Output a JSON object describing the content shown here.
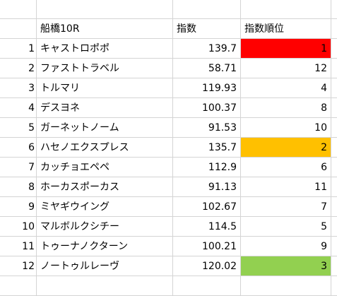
{
  "header": {
    "name": "船橋10R",
    "index": "指数",
    "rank": "指数順位"
  },
  "rows": [
    {
      "num": "1",
      "name": "キャストロポポ",
      "index": "139.7",
      "rank": "1",
      "highlight": "#ff0000"
    },
    {
      "num": "2",
      "name": "ファストトラベル",
      "index": "58.71",
      "rank": "12"
    },
    {
      "num": "3",
      "name": "トルマリ",
      "index": "119.93",
      "rank": "4"
    },
    {
      "num": "4",
      "name": "デスヨネ",
      "index": "100.37",
      "rank": "8"
    },
    {
      "num": "5",
      "name": "ガーネットノーム",
      "index": "91.53",
      "rank": "10"
    },
    {
      "num": "6",
      "name": "ハセノエクスプレス",
      "index": "135.7",
      "rank": "2",
      "highlight": "#ffc000"
    },
    {
      "num": "7",
      "name": "カッチョエペペ",
      "index": "112.9",
      "rank": "6"
    },
    {
      "num": "8",
      "name": "ホーカスポーカス",
      "index": "91.13",
      "rank": "11"
    },
    {
      "num": "9",
      "name": "ミヤギウイング",
      "index": "102.67",
      "rank": "7"
    },
    {
      "num": "10",
      "name": "マルボルクシチー",
      "index": "114.5",
      "rank": "5"
    },
    {
      "num": "11",
      "name": "トゥーナノクターン",
      "index": "100.21",
      "rank": "9"
    },
    {
      "num": "12",
      "name": "ノートゥルレーヴ",
      "index": "120.02",
      "rank": "3",
      "highlight": "#92d050"
    }
  ]
}
